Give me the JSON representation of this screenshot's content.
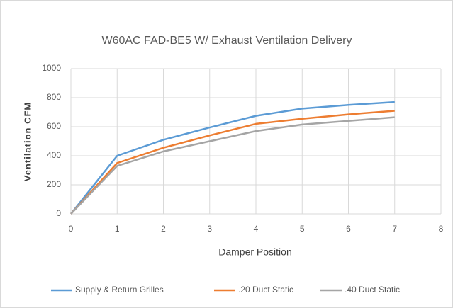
{
  "chart_data": {
    "type": "line",
    "title": "W60AC FAD-BE5 W/ Exhaust Ventilation Delivery",
    "x_label": "Damper Position",
    "y_label": "Ventilation CFM",
    "x": [
      0,
      1,
      2,
      3,
      4,
      5,
      6,
      7
    ],
    "series": [
      {
        "name": "Supply & Return Grilles",
        "color": "#5b9bd5",
        "values": [
          0,
          400,
          510,
          595,
          675,
          725,
          750,
          770
        ]
      },
      {
        "name": ".20 Duct Static",
        "color": "#ed7d31",
        "values": [
          0,
          350,
          455,
          540,
          620,
          655,
          685,
          710
        ]
      },
      {
        "name": ".40 Duct Static",
        "color": "#a5a5a5",
        "values": [
          0,
          330,
          430,
          500,
          570,
          615,
          640,
          665
        ]
      }
    ],
    "xlim": [
      0,
      8
    ],
    "xticks": [
      0,
      1,
      2,
      3,
      4,
      5,
      6,
      7,
      8
    ],
    "ylim": [
      0,
      1000
    ],
    "yticks": [
      0,
      200,
      400,
      600,
      800,
      1000
    ],
    "grid": true,
    "legend": "bottom"
  }
}
